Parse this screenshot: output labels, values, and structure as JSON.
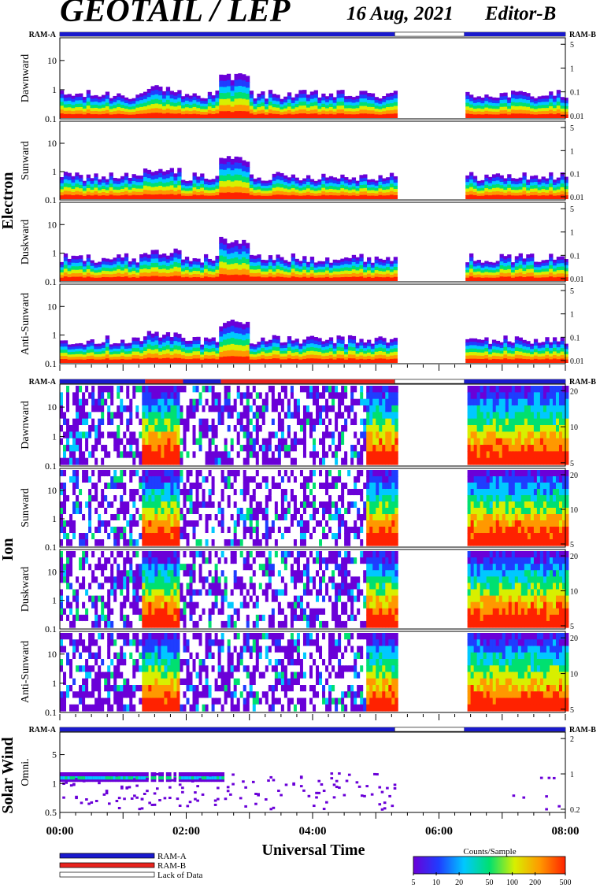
{
  "header": {
    "title": "GEOTAIL / LEP",
    "date": "16 Aug, 2021",
    "editor": "Editor-B"
  },
  "chart_data": {
    "type": "heatmap",
    "xlabel": "Universal Time",
    "x_ticks": [
      "00:00",
      "02:00",
      "04:00",
      "06:00",
      "08:00"
    ],
    "x_range_hours": [
      0,
      8
    ],
    "lack_of_data_hours": [
      [
        5.3,
        6.4
      ]
    ],
    "groups": [
      {
        "name": "Electron",
        "ram_label_left": "RAM-A",
        "ram_label_right": "RAM-B",
        "ram_segments": [
          {
            "start": 0.0,
            "end": 5.3,
            "state": "RAM-A"
          },
          {
            "start": 5.3,
            "end": 6.4,
            "state": "Lack of Data"
          },
          {
            "start": 6.4,
            "end": 8.0,
            "state": "RAM-A"
          }
        ],
        "panels": [
          {
            "name": "Dawnward",
            "left_ticks": [
              "10",
              "1",
              "0.1"
            ],
            "right_ticks": [
              "5",
              "1",
              "0.1",
              "0.01"
            ]
          },
          {
            "name": "Sunward",
            "left_ticks": [
              "10",
              "1",
              "0.1"
            ],
            "right_ticks": [
              "5",
              "1",
              "0.1",
              "0.01"
            ]
          },
          {
            "name": "Duskward",
            "left_ticks": [
              "10",
              "1",
              "0.1"
            ],
            "right_ticks": [
              "5",
              "1",
              "0.1",
              "0.01"
            ]
          },
          {
            "name": "Anti-Sunward",
            "left_ticks": [
              "10",
              "1",
              "0.1"
            ],
            "right_ticks": [
              "5",
              "1",
              "0.1",
              "0.01"
            ]
          }
        ]
      },
      {
        "name": "Ion",
        "ram_label_left": "RAM-A",
        "ram_label_right": "RAM-B",
        "ram_segments": [
          {
            "start": 0.0,
            "end": 1.35,
            "state": "RAM-A"
          },
          {
            "start": 1.35,
            "end": 1.95,
            "state": "RAM-B"
          },
          {
            "start": 1.95,
            "end": 2.55,
            "state": "RAM-A"
          },
          {
            "start": 2.55,
            "end": 5.3,
            "state": "RAM-B"
          },
          {
            "start": 5.3,
            "end": 6.4,
            "state": "Lack of Data"
          },
          {
            "start": 6.4,
            "end": 8.0,
            "state": "RAM-A"
          }
        ],
        "panels": [
          {
            "name": "Dawnward",
            "left_ticks": [
              "10",
              "1",
              "0.1"
            ],
            "right_ticks": [
              "20",
              "10",
              "5"
            ]
          },
          {
            "name": "Sunward",
            "left_ticks": [
              "10",
              "1",
              "0.1"
            ],
            "right_ticks": [
              "20",
              "10",
              "5"
            ]
          },
          {
            "name": "Duskward",
            "left_ticks": [
              "10",
              "1",
              "0.1"
            ],
            "right_ticks": [
              "20",
              "10",
              "5"
            ]
          },
          {
            "name": "Anti-Sunward",
            "left_ticks": [
              "10",
              "1",
              "0.1"
            ],
            "right_ticks": [
              "20",
              "10",
              "5"
            ]
          }
        ]
      },
      {
        "name": "Solar Wind",
        "ram_label_left": "RAM-A",
        "ram_label_right": "RAM-B",
        "ram_segments": [
          {
            "start": 0.0,
            "end": 5.3,
            "state": "RAM-A"
          },
          {
            "start": 5.3,
            "end": 6.4,
            "state": "Lack of Data"
          },
          {
            "start": 6.4,
            "end": 8.0,
            "state": "RAM-A"
          }
        ],
        "panels": [
          {
            "name": "Omni.",
            "left_ticks": [
              "5",
              "1",
              "0.5"
            ],
            "right_ticks": [
              "2",
              "1",
              "0.2"
            ]
          }
        ]
      }
    ],
    "legend": {
      "items": [
        "RAM-A",
        "RAM-B",
        "Lack of Data"
      ],
      "colors": {
        "RAM-A": "#1a1acc",
        "RAM-B": "#e8231e",
        "Lack of Data": "#ffffff"
      }
    },
    "colorbar": {
      "title": "Counts/Sample",
      "ticks": [
        "5",
        "10",
        "20",
        "50",
        "100",
        "200",
        "500"
      ],
      "scale": "log"
    },
    "colormap": [
      "#6a00d8",
      "#1f3dff",
      "#00c8ff",
      "#00e070",
      "#d8ef00",
      "#ff9800",
      "#ff2200"
    ]
  }
}
